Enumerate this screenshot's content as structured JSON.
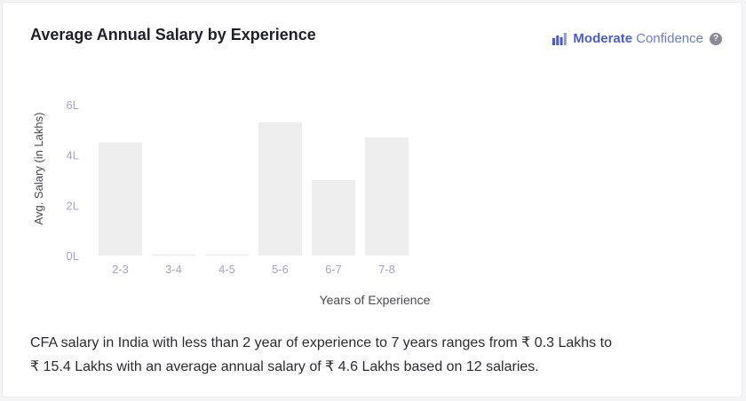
{
  "card": {
    "title": "Average Annual Salary by Experience",
    "confidence": {
      "level": "Moderate",
      "word": "Confidence",
      "icon": "bar-chart-icon",
      "help_icon": "help-icon",
      "help_glyph": "?"
    },
    "summary_line1": "CFA salary in India with less than 2 year of experience to 7 years ranges from ₹ 0.3 Lakhs to",
    "summary_line2": "₹ 15.4 Lakhs with an average annual salary of ₹ 4.6 Lakhs based on 12 salaries."
  },
  "colors": {
    "bar": "#eeeeee",
    "tick": "#a4a4c4",
    "axis_label": "#4a4a55",
    "accent": "#4a5bd8"
  },
  "chart_data": {
    "type": "bar",
    "categories": [
      "2-3",
      "3-4",
      "4-5",
      "5-6",
      "6-7",
      "7-8"
    ],
    "values": [
      4.5,
      0.05,
      0.05,
      5.3,
      3.0,
      4.7
    ],
    "ylim": [
      0,
      6
    ],
    "yticks": [
      {
        "value": 0,
        "label": "0L"
      },
      {
        "value": 2,
        "label": "2L"
      },
      {
        "value": 4,
        "label": "4L"
      },
      {
        "value": 6,
        "label": "6L"
      }
    ],
    "xlabel": "Years of Experience",
    "ylabel": "Avg. Salary (in Lakhs)",
    "grid": false
  }
}
